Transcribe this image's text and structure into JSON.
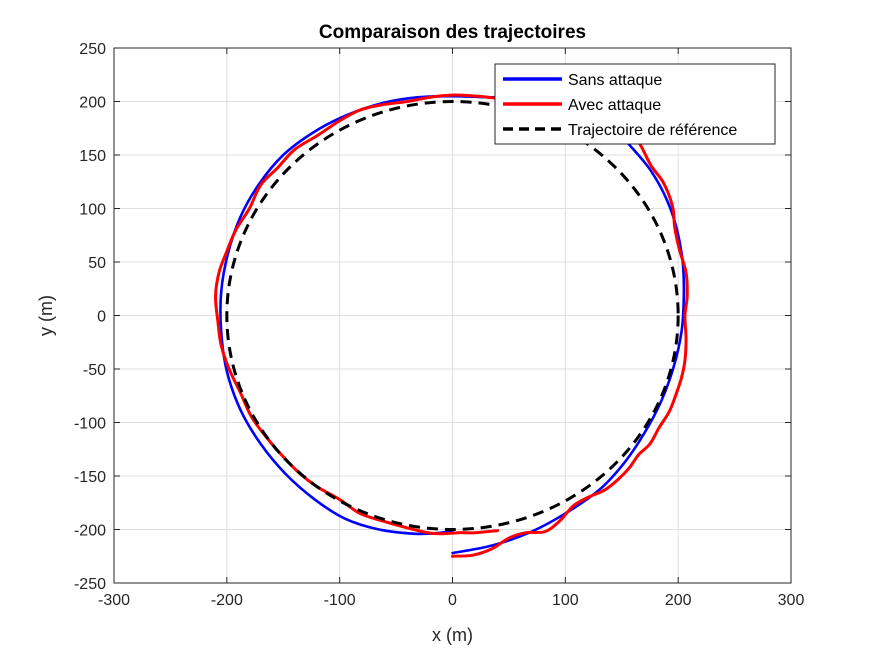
{
  "chart_data": {
    "type": "line",
    "title": "Comparaison des trajectoires",
    "xlabel": "x (m)",
    "ylabel": "y (m)",
    "xlim": [
      -300,
      300
    ],
    "ylim": [
      -250,
      250
    ],
    "xticks": [
      -300,
      -200,
      -100,
      0,
      100,
      200,
      300
    ],
    "yticks": [
      -250,
      -200,
      -150,
      -100,
      -50,
      0,
      50,
      100,
      150,
      200,
      250
    ],
    "xtick_labels": [
      "-300",
      "-200",
      "-100",
      "0",
      "100",
      "200",
      "300"
    ],
    "ytick_labels": [
      "-250",
      "-200",
      "-150",
      "-100",
      "-50",
      "0",
      "50",
      "100",
      "150",
      "200",
      "250"
    ],
    "grid": true,
    "legend_position": "top-right",
    "series": [
      {
        "name": "Sans attaque",
        "color": "#0000ff",
        "style": "solid",
        "x": [
          0,
          35,
          70,
          100,
          130,
          152,
          170,
          185,
          196,
          203,
          205,
          204,
          199,
          190,
          176,
          158,
          140,
          120,
          100,
          78,
          55,
          30,
          0,
          -30,
          -60,
          -92,
          -122,
          -150,
          -172,
          -188,
          -199,
          -205,
          -205,
          -200,
          -188,
          -170,
          -148,
          -122,
          -95,
          -65,
          -33,
          -10,
          0
        ],
        "y": [
          -222,
          -215,
          -202,
          -185,
          -163,
          -138,
          -110,
          -80,
          -48,
          -15,
          18,
          50,
          80,
          108,
          135,
          158,
          178,
          190,
          198,
          202,
          204,
          204,
          205,
          204,
          199,
          188,
          172,
          150,
          122,
          92,
          58,
          22,
          -15,
          -52,
          -88,
          -120,
          -148,
          -172,
          -190,
          -200,
          -204,
          -203,
          -201
        ]
      },
      {
        "name": "Avec attaque",
        "color": "#ff0000",
        "style": "solid",
        "x": [
          0,
          18,
          35,
          50,
          65,
          82,
          95,
          107,
          120,
          135,
          148,
          157,
          165,
          175,
          183,
          192,
          198,
          203,
          206,
          207,
          206,
          208,
          207,
          201,
          197,
          195,
          187,
          176,
          165,
          150,
          133,
          118,
          100,
          82,
          62,
          40,
          22,
          0,
          -20,
          -40,
          -62,
          -82,
          -100,
          -120,
          -140,
          -155,
          -170,
          -180,
          -192,
          -200,
          -207,
          -210,
          -208,
          -205,
          -198,
          -188,
          -178,
          -164,
          -150,
          -135,
          -120,
          -100,
          -82,
          -62,
          -42,
          -22,
          -10,
          5,
          20,
          40
        ],
        "y": [
          -225,
          -224,
          -218,
          -208,
          -203,
          -202,
          -192,
          -178,
          -170,
          -163,
          -152,
          -142,
          -130,
          -120,
          -105,
          -90,
          -74,
          -58,
          -42,
          -22,
          0,
          18,
          40,
          62,
          82,
          102,
          124,
          140,
          162,
          180,
          192,
          198,
          200,
          201,
          202,
          203,
          205,
          206,
          204,
          200,
          197,
          192,
          182,
          168,
          155,
          138,
          122,
          100,
          80,
          60,
          40,
          18,
          -5,
          -28,
          -50,
          -72,
          -95,
          -115,
          -132,
          -148,
          -160,
          -172,
          -185,
          -192,
          -198,
          -203,
          -204,
          -203,
          -203,
          -201
        ]
      },
      {
        "name": "Trajectoire de référence",
        "color": "#000000",
        "style": "dashed",
        "type": "circle",
        "radius": 200,
        "center": [
          0,
          0
        ]
      }
    ]
  }
}
